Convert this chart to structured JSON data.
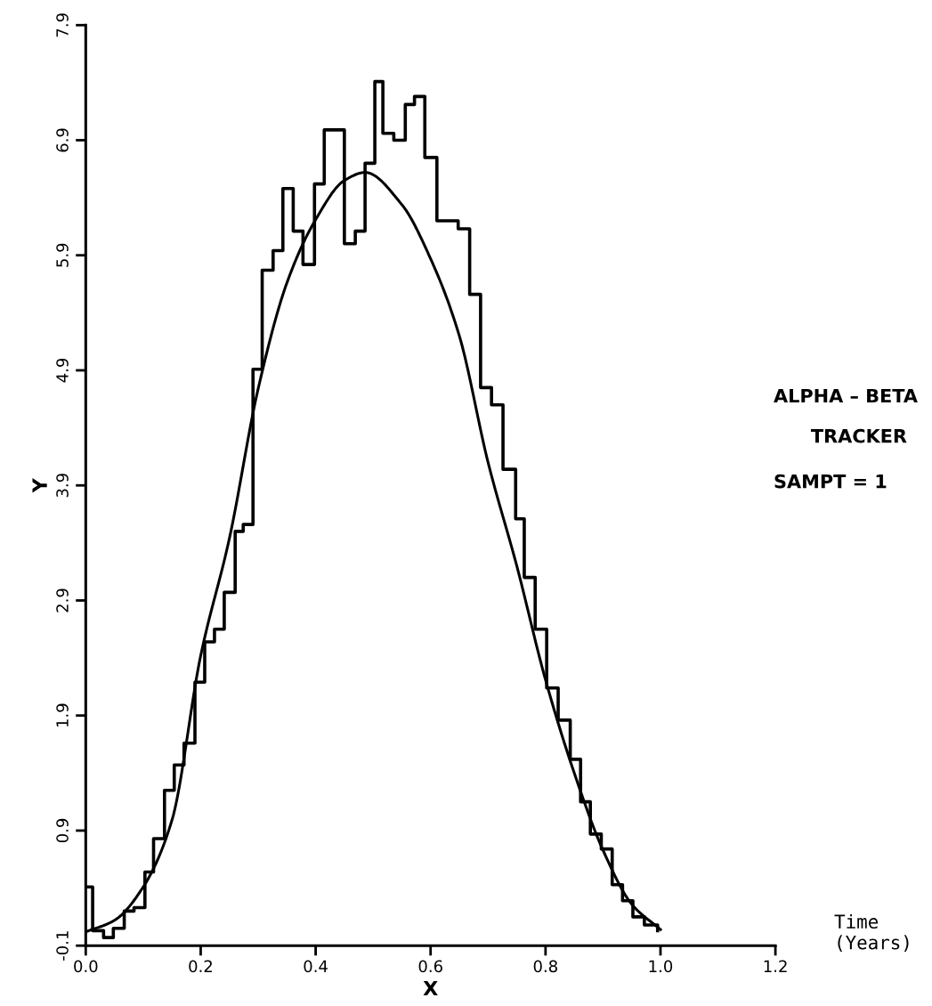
{
  "chart_data": {
    "type": "line",
    "xlabel": "X",
    "ylabel": "Y",
    "xlim": [
      0,
      1.2
    ],
    "ylim": [
      -0.1,
      7.9
    ],
    "xticks": [
      {
        "value": 0,
        "label": "0.0"
      },
      0.2,
      0.4,
      0.6,
      0.8,
      {
        "value": 1,
        "label": "1.0"
      },
      1.2
    ],
    "yticks": [
      -0.1,
      0.9,
      1.9,
      2.9,
      3.9,
      4.9,
      5.9,
      6.9,
      7.9
    ],
    "grid": false,
    "legend": false,
    "series": [
      {
        "type": "step",
        "color": "#000000",
        "x": [
          0,
          0.012,
          0.031,
          0.048,
          0.067,
          0.084,
          0.103,
          0.118,
          0.137,
          0.154,
          0.171,
          0.19,
          0.207,
          0.224,
          0.241,
          0.26,
          0.274,
          0.291,
          0.307,
          0.326,
          0.343,
          0.361,
          0.378,
          0.398,
          0.415,
          0.45,
          0.469,
          0.486,
          0.503,
          0.517,
          0.536,
          0.556,
          0.572,
          0.59,
          0.611,
          0.648,
          0.668,
          0.687,
          0.706,
          0.726,
          0.748,
          0.763,
          0.782,
          0.802,
          0.822,
          0.843,
          0.861,
          0.878,
          0.897,
          0.916,
          0.934,
          0.952,
          0.972,
          0.995
        ],
        "values": [
          0.41,
          0.03,
          -0.03,
          0.05,
          0.2,
          0.23,
          0.54,
          0.83,
          1.25,
          1.47,
          1.66,
          2.19,
          2.54,
          2.65,
          2.97,
          3.5,
          3.56,
          4.91,
          5.77,
          5.94,
          6.48,
          6.11,
          5.82,
          6.52,
          6.99,
          6.0,
          6.11,
          6.7,
          7.41,
          6.96,
          6.9,
          7.21,
          7.28,
          6.75,
          6.2,
          6.13,
          5.56,
          4.75,
          4.6,
          4.04,
          3.61,
          3.1,
          2.65,
          2.14,
          1.86,
          1.52,
          1.15,
          0.87,
          0.74,
          0.43,
          0.29,
          0.15,
          0.08,
          0.03
        ]
      },
      {
        "color": "#000000",
        "x": [
          0,
          0.05,
          0.1,
          0.15,
          0.2,
          0.25,
          0.3,
          0.35,
          0.4,
          0.45,
          0.486,
          0.55,
          0.6,
          0.65,
          0.7,
          0.75,
          0.8,
          0.85,
          0.9,
          0.95,
          1.0
        ],
        "values": [
          0.02,
          0.12,
          0.41,
          0.99,
          2.42,
          3.44,
          4.74,
          5.66,
          6.21,
          6.55,
          6.62,
          6.34,
          5.87,
          5.2,
          4.1,
          3.2,
          2.21,
          1.4,
          0.73,
          0.26,
          0.04
        ]
      }
    ],
    "annotations": [
      "ALPHA – BETA",
      "TRACKER",
      "SAMPT = 1",
      "Time\n(Years)"
    ]
  }
}
